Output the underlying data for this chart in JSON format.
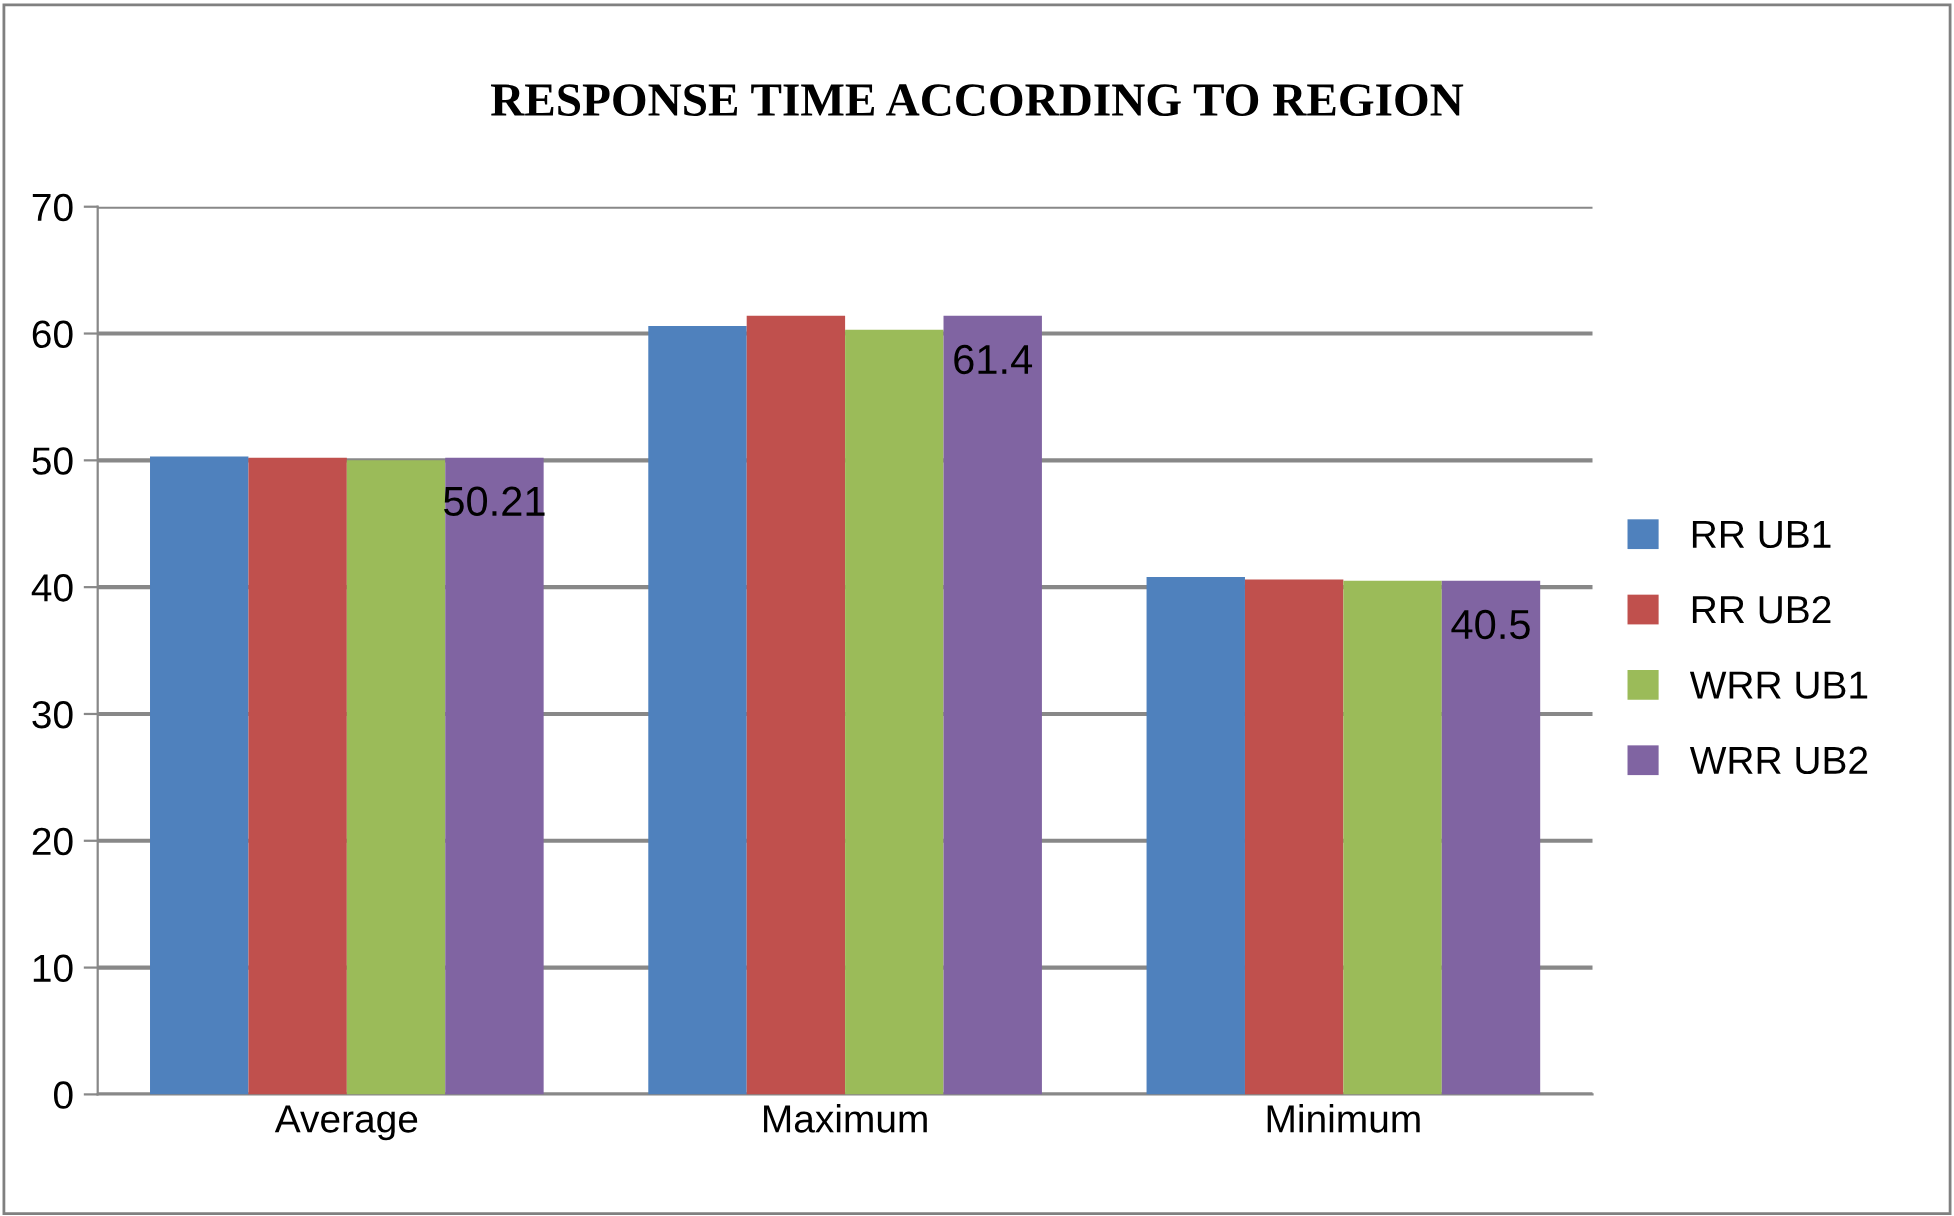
{
  "chart_data": {
    "type": "bar",
    "title": "RESPONSE TIME ACCORDING TO REGION",
    "categories": [
      "Average",
      "Maximum",
      "Minimum"
    ],
    "series": [
      {
        "name": "RR UB1",
        "color": "#4f81bd",
        "values": [
          50.3,
          60.6,
          40.8
        ]
      },
      {
        "name": "RR UB2",
        "color": "#c0504d",
        "values": [
          50.2,
          61.4,
          40.6
        ]
      },
      {
        "name": "WRR UB1",
        "color": "#9bbb59",
        "values": [
          50.0,
          60.3,
          40.5
        ]
      },
      {
        "name": "WRR UB2",
        "color": "#8064a2",
        "values": [
          50.21,
          61.4,
          40.5
        ],
        "value_labels": [
          "50.21",
          "61.4",
          "40.5"
        ]
      }
    ],
    "ylim": [
      0,
      70
    ],
    "yticks": [
      0,
      10,
      20,
      30,
      40,
      50,
      60,
      70
    ],
    "grid": "y",
    "legend": "right"
  }
}
